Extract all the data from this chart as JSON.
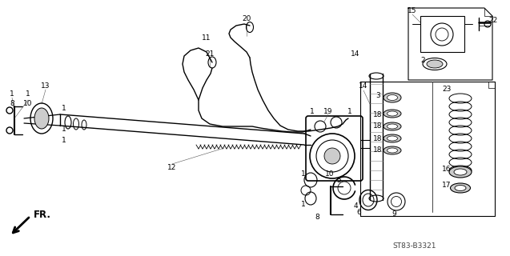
{
  "bg_color": "#ffffff",
  "diagram_code": "ST83-B3321",
  "figsize": [
    6.37,
    3.2
  ],
  "dpi": 100
}
